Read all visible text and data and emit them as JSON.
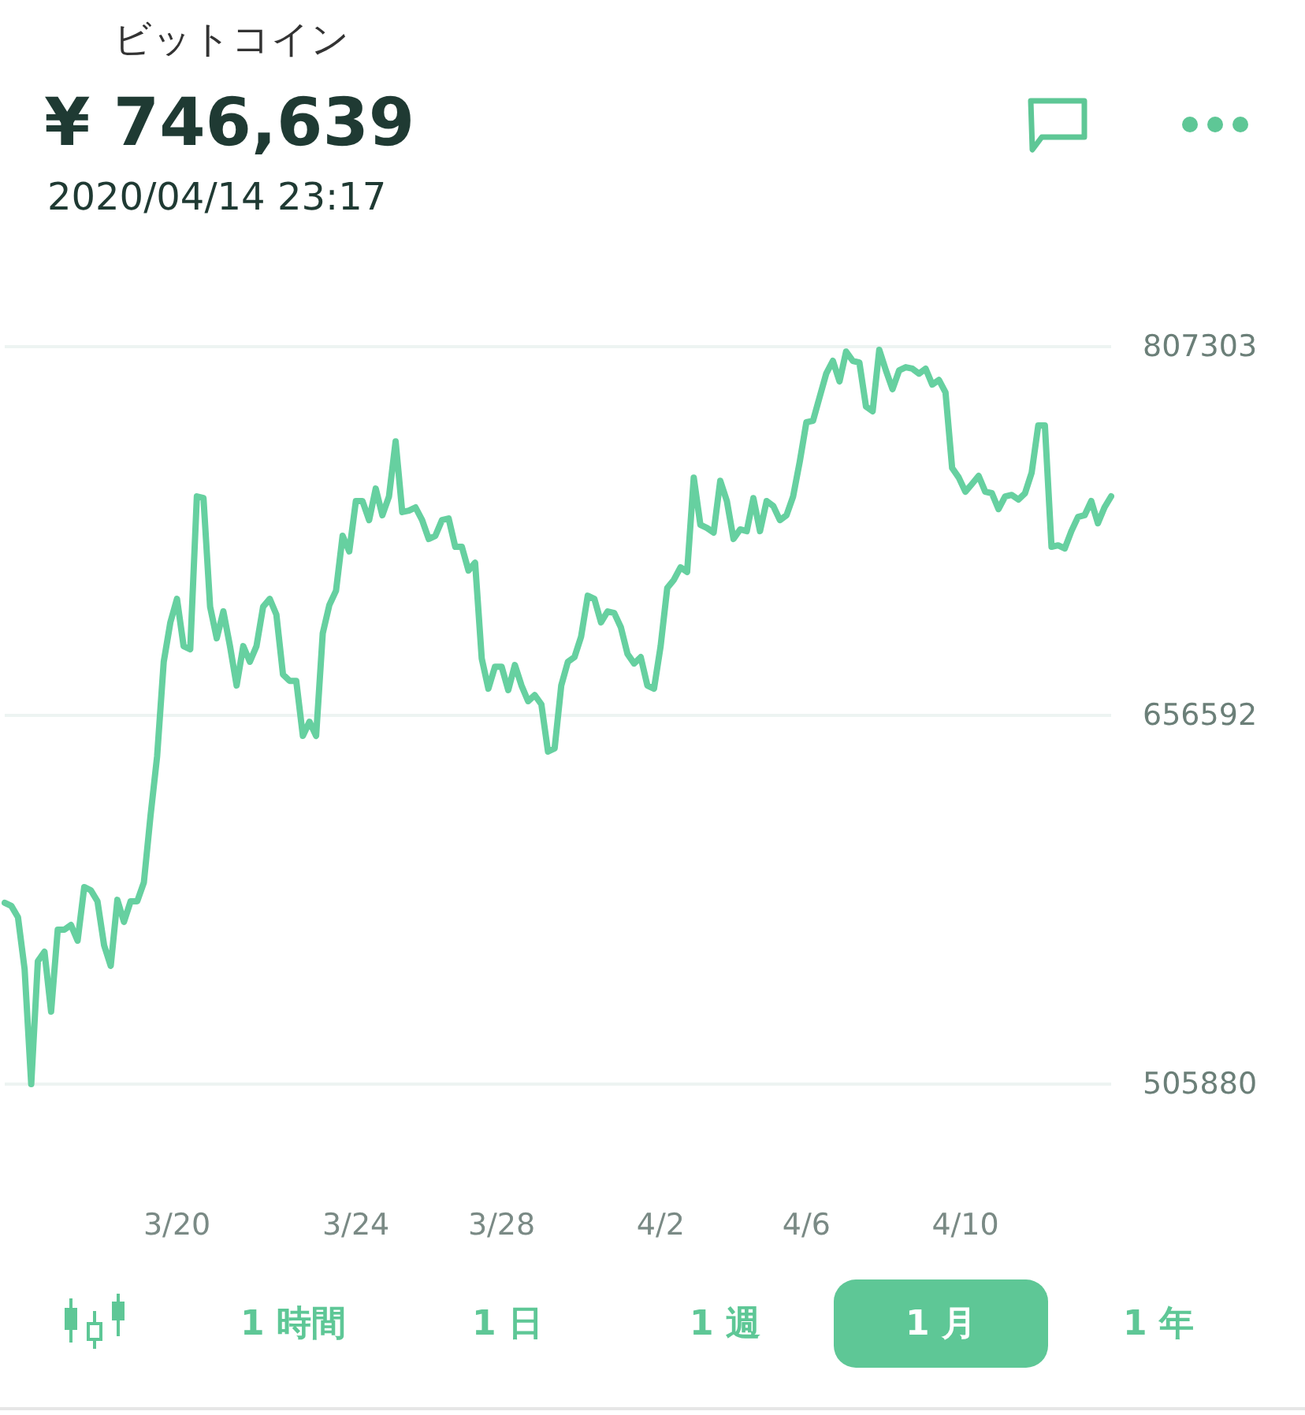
{
  "chart_data": {
    "type": "line",
    "title": "ビットコイン",
    "subtitle": "¥ 746,639",
    "annotations": [
      "2020/04/14 23:17",
      "1 時間",
      "1 日",
      "1 週",
      "1 月",
      "1 年"
    ],
    "categories": [
      null,
      null,
      null,
      null,
      null,
      null,
      null,
      null,
      null,
      null,
      null,
      null,
      null,
      null,
      null,
      null,
      null,
      null,
      null,
      null,
      null,
      null,
      null,
      null,
      null,
      null,
      "3/20",
      null,
      null,
      null,
      null,
      null,
      null,
      null,
      null,
      null,
      null,
      null,
      null,
      null,
      null,
      null,
      null,
      null,
      null,
      null,
      null,
      null,
      null,
      null,
      null,
      null,
      null,
      "3/24",
      null,
      null,
      null,
      null,
      null,
      null,
      null,
      null,
      null,
      null,
      null,
      null,
      null,
      null,
      null,
      null,
      null,
      null,
      null,
      null,
      null,
      "3/28",
      null,
      null,
      null,
      null,
      null,
      null,
      null,
      null,
      null,
      null,
      null,
      null,
      null,
      null,
      null,
      null,
      null,
      null,
      null,
      null,
      null,
      null,
      null,
      "4/2",
      null,
      null,
      null,
      null,
      null,
      null,
      null,
      null,
      null,
      null,
      null,
      null,
      null,
      null,
      null,
      null,
      null,
      null,
      null,
      null,
      null,
      "4/6",
      null,
      null,
      null,
      null,
      null,
      null,
      null,
      null,
      null,
      null,
      null,
      null,
      null,
      null,
      null,
      null,
      null,
      null,
      null,
      null,
      null,
      null,
      null,
      "4/10",
      null,
      null,
      null,
      null,
      null,
      null,
      null,
      null,
      null,
      null,
      null,
      null,
      null,
      null,
      null,
      null,
      null,
      null,
      null,
      null,
      null,
      null
    ],
    "series": [
      {
        "color": "#66d0a0",
        "values": [
          580000,
          578700,
          574100,
          552900,
          505900,
          556100,
          560000,
          535500,
          569000,
          569000,
          570900,
          564500,
          586400,
          585100,
          580600,
          562600,
          554200,
          581200,
          572200,
          580600,
          580600,
          588300,
          615400,
          639800,
          678500,
          694600,
          704200,
          684900,
          683600,
          746100,
          745400,
          701000,
          688100,
          699100,
          684900,
          668800,
          684900,
          678500,
          684900,
          701000,
          704200,
          697800,
          673300,
          670700,
          670700,
          648200,
          654000,
          648200,
          690100,
          701700,
          707500,
          730000,
          723600,
          744200,
          744200,
          736400,
          749300,
          738400,
          746100,
          768600,
          739700,
          740300,
          741600,
          736400,
          728700,
          730000,
          736400,
          737100,
          725500,
          725500,
          715800,
          719000,
          679800,
          667500,
          676500,
          676500,
          666900,
          677200,
          668800,
          662400,
          664900,
          661100,
          641800,
          643100,
          668800,
          678500,
          680400,
          688800,
          705500,
          704200,
          694600,
          699100,
          698400,
          692600,
          681700,
          677800,
          680400,
          668800,
          667500,
          684900,
          708700,
          712000,
          717100,
          715200,
          753800,
          734500,
          733200,
          731300,
          752500,
          744200,
          728700,
          732600,
          731900,
          745400,
          731900,
          744200,
          742200,
          736400,
          738400,
          746100,
          760300,
          776400,
          777000,
          786700,
          796300,
          801500,
          793100,
          805300,
          801500,
          800800,
          782800,
          780900,
          806000,
          797600,
          789900,
          797600,
          798900,
          798300,
          796300,
          798300,
          791800,
          793700,
          788600,
          757700,
          753800,
          748000,
          751200,
          754500,
          748000,
          747400,
          740900,
          746100,
          746700,
          744800,
          747400,
          755800,
          775100,
          775100,
          725500,
          726100,
          724800,
          731900,
          737700,
          738400,
          744200,
          735100,
          741600,
          746100
        ]
      }
    ],
    "ylim": [
      505880,
      807303
    ],
    "yticks": [
      505880,
      656592,
      807303
    ],
    "grid": "y",
    "marker": "none",
    "line_style": "solid"
  }
}
